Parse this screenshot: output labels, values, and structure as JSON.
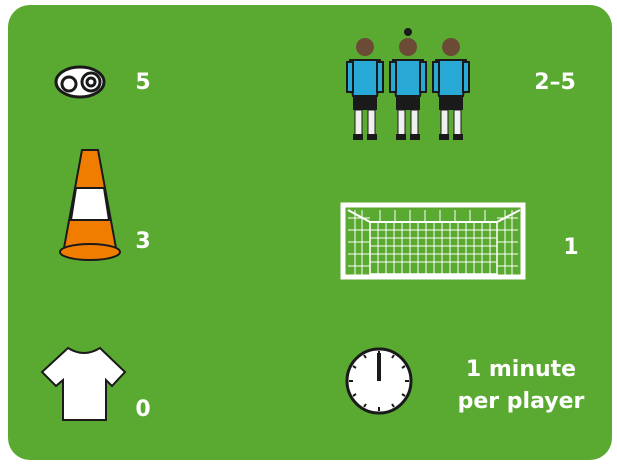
{
  "items": [
    {
      "label": "5"
    },
    {
      "label": "2–5"
    },
    {
      "label": "3"
    },
    {
      "label": "1"
    },
    {
      "label": "0"
    },
    {
      "lines": [
        "1 minute",
        "per player"
      ]
    }
  ]
}
